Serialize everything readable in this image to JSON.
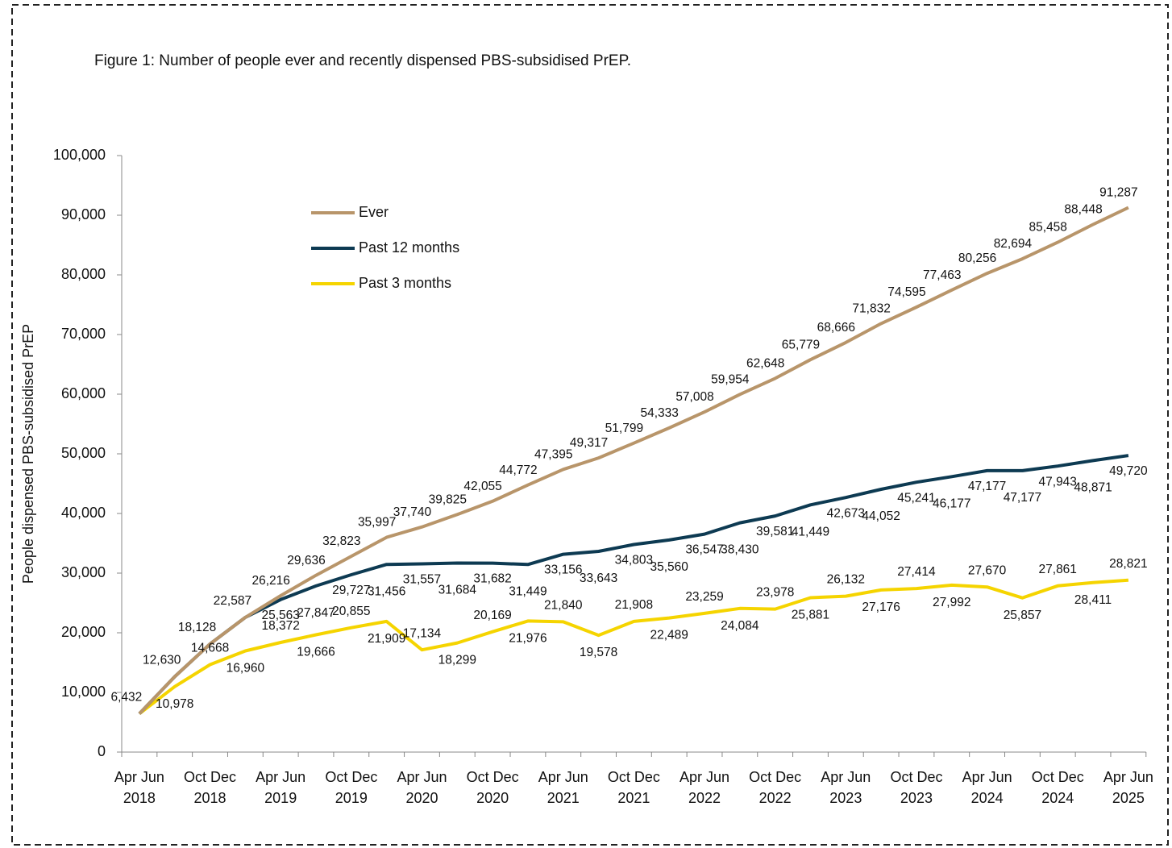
{
  "chart_data": {
    "type": "line",
    "title": "Figure 1: Number of people ever and recently dispensed PBS-subsidised PrEP.",
    "y_label": "People dispensed PBS-subsidised PrEP",
    "categories": [
      "Apr Jun 2018",
      null,
      "Oct Dec 2018",
      null,
      "Apr Jun 2019",
      null,
      "Oct Dec 2019",
      null,
      "Apr Jun 2020",
      null,
      "Oct Dec 2020",
      null,
      "Apr Jun 2021",
      null,
      "Oct Dec 2021",
      null,
      "Apr Jun 2022",
      null,
      "Oct Dec 2022",
      null,
      "Apr Jun 2023",
      null,
      "Oct Dec 2023",
      null,
      "Apr Jun 2024",
      null,
      "Oct Dec 2024",
      null,
      "Apr Jun 2025"
    ],
    "series": [
      {
        "name": "Ever",
        "color": "#b8956a",
        "values": [
          6432,
          12630,
          18128,
          22587,
          26216,
          29636,
          32823,
          35997,
          37740,
          39825,
          42055,
          44772,
          47395,
          49317,
          51799,
          54333,
          57008,
          59954,
          62648,
          65779,
          68666,
          71832,
          74595,
          77463,
          80256,
          82694,
          85458,
          88448,
          91287
        ],
        "value_labels": [
          "6,432",
          "12,630",
          "18,128",
          "22,587",
          "26,216",
          "29,636",
          "32,823",
          "35,997",
          "37,740",
          "39,825",
          "42,055",
          "44,772",
          "47,395",
          "49,317",
          "51,799",
          "54,333",
          "57,008",
          "59,954",
          "62,648",
          "65,779",
          "68,666",
          "71,832",
          "74,595",
          "77,463",
          "80,256",
          "82,694",
          "85,458",
          "88,448",
          "91,287"
        ]
      },
      {
        "name": "Past 12 months",
        "color": "#0d3a52",
        "values": [
          6432,
          12630,
          18128,
          22587,
          25563,
          27847,
          29727,
          31456,
          31557,
          31684,
          31682,
          31449,
          33156,
          33643,
          34803,
          35560,
          36547,
          38430,
          39581,
          41449,
          42673,
          44052,
          45241,
          46177,
          47177,
          47177,
          47943,
          48871,
          49720
        ],
        "value_labels": [
          null,
          null,
          null,
          null,
          "25,563",
          "27,847",
          "29,727",
          "31,456",
          "31,557",
          "31,684",
          "31,682",
          "31,449",
          "33,156",
          "33,643",
          "34,803",
          "35,560",
          "36,547",
          "38,430",
          "39,581",
          "41,449",
          "42,673",
          "44,052",
          "45,241",
          "46,177",
          "47,177",
          "47,177",
          "47,943",
          "48,871",
          "49,720"
        ]
      },
      {
        "name": "Past 3 months",
        "color": "#f5d400",
        "values": [
          6432,
          10978,
          14668,
          16960,
          18372,
          19666,
          20855,
          21909,
          17134,
          18299,
          20169,
          21976,
          21840,
          19578,
          21908,
          22489,
          23259,
          24084,
          23978,
          25881,
          26132,
          27176,
          27414,
          27992,
          27670,
          25857,
          27861,
          28411,
          28821
        ],
        "value_labels": [
          null,
          "10,978",
          "14,668",
          "16,960",
          "18,372",
          "19,666",
          "20,855",
          "21,909",
          "17,134",
          "18,299",
          "20,169",
          "21,976",
          "21,840",
          "19,578",
          "21,908",
          "22,489",
          "23,259",
          "24,084",
          "23,978",
          "25,881",
          "26,132",
          "27,176",
          "27,414",
          "27,992",
          "27,670",
          "25,857",
          "27,861",
          "28,411",
          "28,821"
        ]
      }
    ],
    "ylim": [
      0,
      100000
    ],
    "yticks": [
      0,
      {
        "value": 10000,
        "label": "10,000"
      },
      {
        "value": 20000,
        "label": "20,000"
      },
      {
        "value": 30000,
        "label": "30,000"
      },
      {
        "value": 40000,
        "label": "40,000"
      },
      {
        "value": 50000,
        "label": "50,000"
      },
      {
        "value": 60000,
        "label": "60,000"
      },
      {
        "value": 70000,
        "label": "70,000"
      },
      {
        "value": 80000,
        "label": "80,000"
      },
      {
        "value": 90000,
        "label": "90,000"
      },
      {
        "value": 100000,
        "label": "100,000"
      }
    ],
    "legend": "upper left",
    "grid": false
  }
}
